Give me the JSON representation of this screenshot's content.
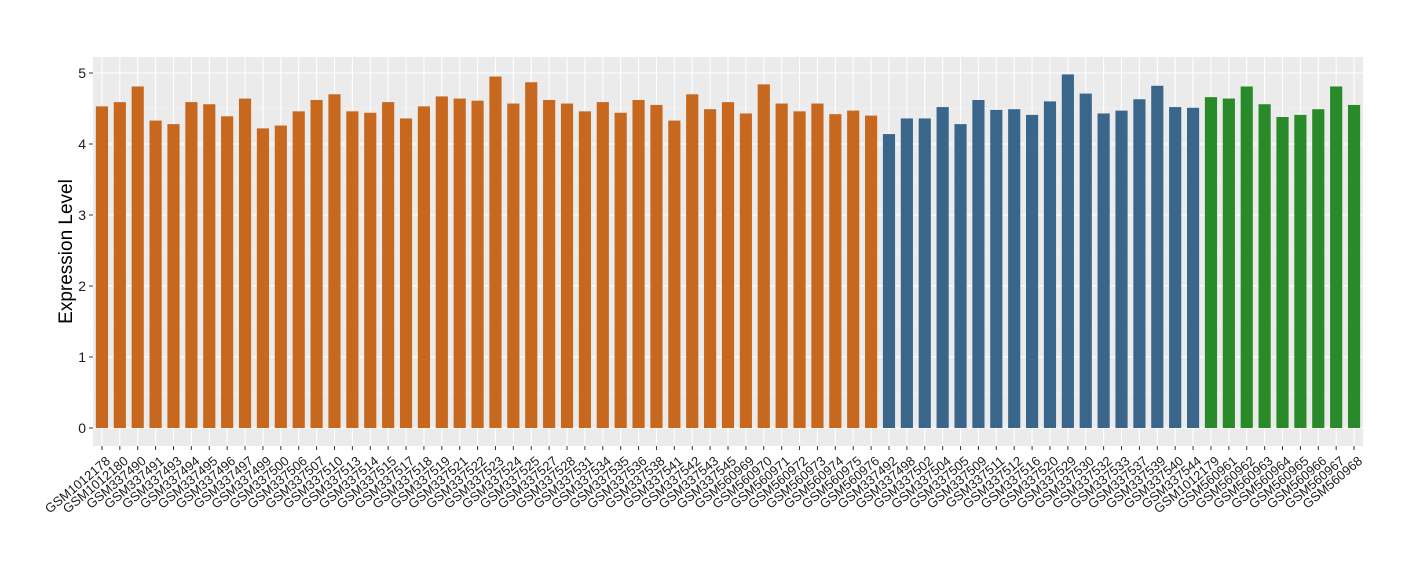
{
  "chart_data": {
    "type": "bar",
    "ylabel": "Expression Level",
    "xlabel": "",
    "ylim": [
      0,
      5.2
    ],
    "yticks": [
      0,
      1,
      2,
      3,
      4,
      5
    ],
    "grid": true,
    "legend": "none",
    "group_colors": {
      "group1": "#C8681F",
      "group2": "#3A668C",
      "group3": "#288A28"
    },
    "bars": [
      {
        "label": "GSM1012178",
        "value": 4.53,
        "group": "group1"
      },
      {
        "label": "GSM1012180",
        "value": 4.59,
        "group": "group1"
      },
      {
        "label": "GSM337490",
        "value": 4.81,
        "group": "group1"
      },
      {
        "label": "GSM337491",
        "value": 4.33,
        "group": "group1"
      },
      {
        "label": "GSM337493",
        "value": 4.28,
        "group": "group1"
      },
      {
        "label": "GSM337494",
        "value": 4.59,
        "group": "group1"
      },
      {
        "label": "GSM337495",
        "value": 4.56,
        "group": "group1"
      },
      {
        "label": "GSM337496",
        "value": 4.39,
        "group": "group1"
      },
      {
        "label": "GSM337497",
        "value": 4.64,
        "group": "group1"
      },
      {
        "label": "GSM337499",
        "value": 4.22,
        "group": "group1"
      },
      {
        "label": "GSM337500",
        "value": 4.26,
        "group": "group1"
      },
      {
        "label": "GSM337506",
        "value": 4.46,
        "group": "group1"
      },
      {
        "label": "GSM337507",
        "value": 4.62,
        "group": "group1"
      },
      {
        "label": "GSM337510",
        "value": 4.7,
        "group": "group1"
      },
      {
        "label": "GSM337513",
        "value": 4.46,
        "group": "group1"
      },
      {
        "label": "GSM337514",
        "value": 4.44,
        "group": "group1"
      },
      {
        "label": "GSM337515",
        "value": 4.59,
        "group": "group1"
      },
      {
        "label": "GSM337517",
        "value": 4.36,
        "group": "group1"
      },
      {
        "label": "GSM337518",
        "value": 4.53,
        "group": "group1"
      },
      {
        "label": "GSM337519",
        "value": 4.67,
        "group": "group1"
      },
      {
        "label": "GSM337521",
        "value": 4.64,
        "group": "group1"
      },
      {
        "label": "GSM337522",
        "value": 4.61,
        "group": "group1"
      },
      {
        "label": "GSM337523",
        "value": 4.95,
        "group": "group1"
      },
      {
        "label": "GSM337524",
        "value": 4.57,
        "group": "group1"
      },
      {
        "label": "GSM337525",
        "value": 4.87,
        "group": "group1"
      },
      {
        "label": "GSM337527",
        "value": 4.62,
        "group": "group1"
      },
      {
        "label": "GSM337528",
        "value": 4.57,
        "group": "group1"
      },
      {
        "label": "GSM337531",
        "value": 4.46,
        "group": "group1"
      },
      {
        "label": "GSM337534",
        "value": 4.59,
        "group": "group1"
      },
      {
        "label": "GSM337535",
        "value": 4.44,
        "group": "group1"
      },
      {
        "label": "GSM337536",
        "value": 4.62,
        "group": "group1"
      },
      {
        "label": "GSM337538",
        "value": 4.55,
        "group": "group1"
      },
      {
        "label": "GSM337541",
        "value": 4.33,
        "group": "group1"
      },
      {
        "label": "GSM337542",
        "value": 4.7,
        "group": "group1"
      },
      {
        "label": "GSM337543",
        "value": 4.49,
        "group": "group1"
      },
      {
        "label": "GSM337545",
        "value": 4.59,
        "group": "group1"
      },
      {
        "label": "GSM560969",
        "value": 4.43,
        "group": "group1"
      },
      {
        "label": "GSM560970",
        "value": 4.84,
        "group": "group1"
      },
      {
        "label": "GSM560971",
        "value": 4.57,
        "group": "group1"
      },
      {
        "label": "GSM560972",
        "value": 4.46,
        "group": "group1"
      },
      {
        "label": "GSM560973",
        "value": 4.57,
        "group": "group1"
      },
      {
        "label": "GSM560974",
        "value": 4.42,
        "group": "group1"
      },
      {
        "label": "GSM560975",
        "value": 4.47,
        "group": "group1"
      },
      {
        "label": "GSM560976",
        "value": 4.4,
        "group": "group1"
      },
      {
        "label": "GSM337492",
        "value": 4.14,
        "group": "group2"
      },
      {
        "label": "GSM337498",
        "value": 4.36,
        "group": "group2"
      },
      {
        "label": "GSM337502",
        "value": 4.36,
        "group": "group2"
      },
      {
        "label": "GSM337504",
        "value": 4.52,
        "group": "group2"
      },
      {
        "label": "GSM337505",
        "value": 4.28,
        "group": "group2"
      },
      {
        "label": "GSM337509",
        "value": 4.62,
        "group": "group2"
      },
      {
        "label": "GSM337511",
        "value": 4.48,
        "group": "group2"
      },
      {
        "label": "GSM337512",
        "value": 4.49,
        "group": "group2"
      },
      {
        "label": "GSM337516",
        "value": 4.41,
        "group": "group2"
      },
      {
        "label": "GSM337520",
        "value": 4.6,
        "group": "group2"
      },
      {
        "label": "GSM337529",
        "value": 4.98,
        "group": "group2"
      },
      {
        "label": "GSM337530",
        "value": 4.71,
        "group": "group2"
      },
      {
        "label": "GSM337532",
        "value": 4.43,
        "group": "group2"
      },
      {
        "label": "GSM337533",
        "value": 4.47,
        "group": "group2"
      },
      {
        "label": "GSM337537",
        "value": 4.63,
        "group": "group2"
      },
      {
        "label": "GSM337539",
        "value": 4.82,
        "group": "group2"
      },
      {
        "label": "GSM337540",
        "value": 4.52,
        "group": "group2"
      },
      {
        "label": "GSM337544",
        "value": 4.51,
        "group": "group2"
      },
      {
        "label": "GSM1012179",
        "value": 4.66,
        "group": "group3"
      },
      {
        "label": "GSM560961",
        "value": 4.64,
        "group": "group3"
      },
      {
        "label": "GSM560962",
        "value": 4.81,
        "group": "group3"
      },
      {
        "label": "GSM560963",
        "value": 4.56,
        "group": "group3"
      },
      {
        "label": "GSM560964",
        "value": 4.38,
        "group": "group3"
      },
      {
        "label": "GSM560965",
        "value": 4.41,
        "group": "group3"
      },
      {
        "label": "GSM560966",
        "value": 4.49,
        "group": "group3"
      },
      {
        "label": "GSM560967",
        "value": 4.81,
        "group": "group3"
      },
      {
        "label": "GSM560968",
        "value": 4.55,
        "group": "group3"
      }
    ]
  }
}
